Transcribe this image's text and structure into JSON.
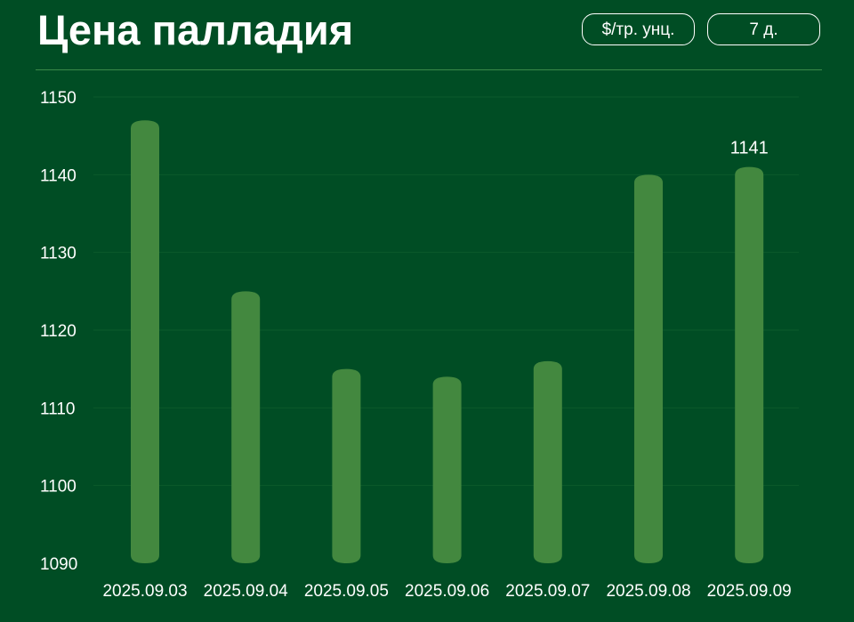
{
  "header": {
    "title": "Цена палладия",
    "unit_label": "$/тр. унц.",
    "period_label": "7 д."
  },
  "colors": {
    "background": "#004d24",
    "bar": "#43883f",
    "grid": "#0b5a2b",
    "divider": "#3a8a4a",
    "text": "#ffffff"
  },
  "chart_data": {
    "type": "bar",
    "title": "Цена палладия",
    "xlabel": "",
    "ylabel": "",
    "categories": [
      "2025.09.03",
      "2025.09.04",
      "2025.09.05",
      "2025.09.06",
      "2025.09.07",
      "2025.09.08",
      "2025.09.09"
    ],
    "values": [
      1147,
      1125,
      1115,
      1114,
      1116,
      1140,
      1141
    ],
    "ylim": [
      1090,
      1150
    ],
    "yticks": [
      1090,
      1100,
      1110,
      1120,
      1130,
      1140,
      1150
    ],
    "grid": true,
    "legend": "none",
    "annotations": [
      {
        "category": "2025.09.09",
        "text": "1141"
      }
    ]
  }
}
